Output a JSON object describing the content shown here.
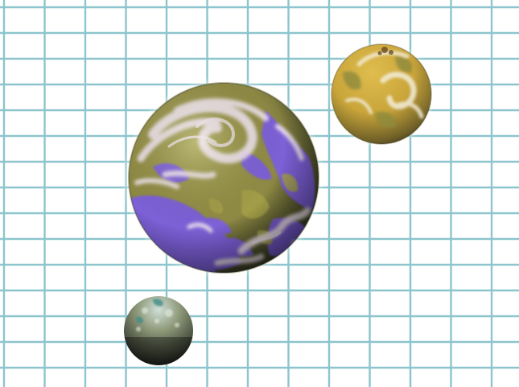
{
  "image": {
    "background_color": "#ffffff",
    "grid_line_color": "#8cc5cd",
    "grid_rows": 14,
    "grid_columns": 13
  },
  "planets": [
    {
      "name": "large-planet",
      "colors": {
        "ocean": "#7d5fe0",
        "land": "#a6a24a",
        "cloud": "#f2e6ee",
        "shadow": "#2f3520"
      }
    },
    {
      "name": "medium-planet",
      "colors": {
        "surface": "#c9a53a",
        "land": "#8e8a3e",
        "cloud": "#f3eedc",
        "shadow": "#2a2716"
      }
    },
    {
      "name": "small-planet",
      "colors": {
        "surface": "#8f9a7a",
        "highlight": "#cfe0d8",
        "accent": "#3f8c8a",
        "shadow": "#0d0f0d"
      }
    }
  ]
}
